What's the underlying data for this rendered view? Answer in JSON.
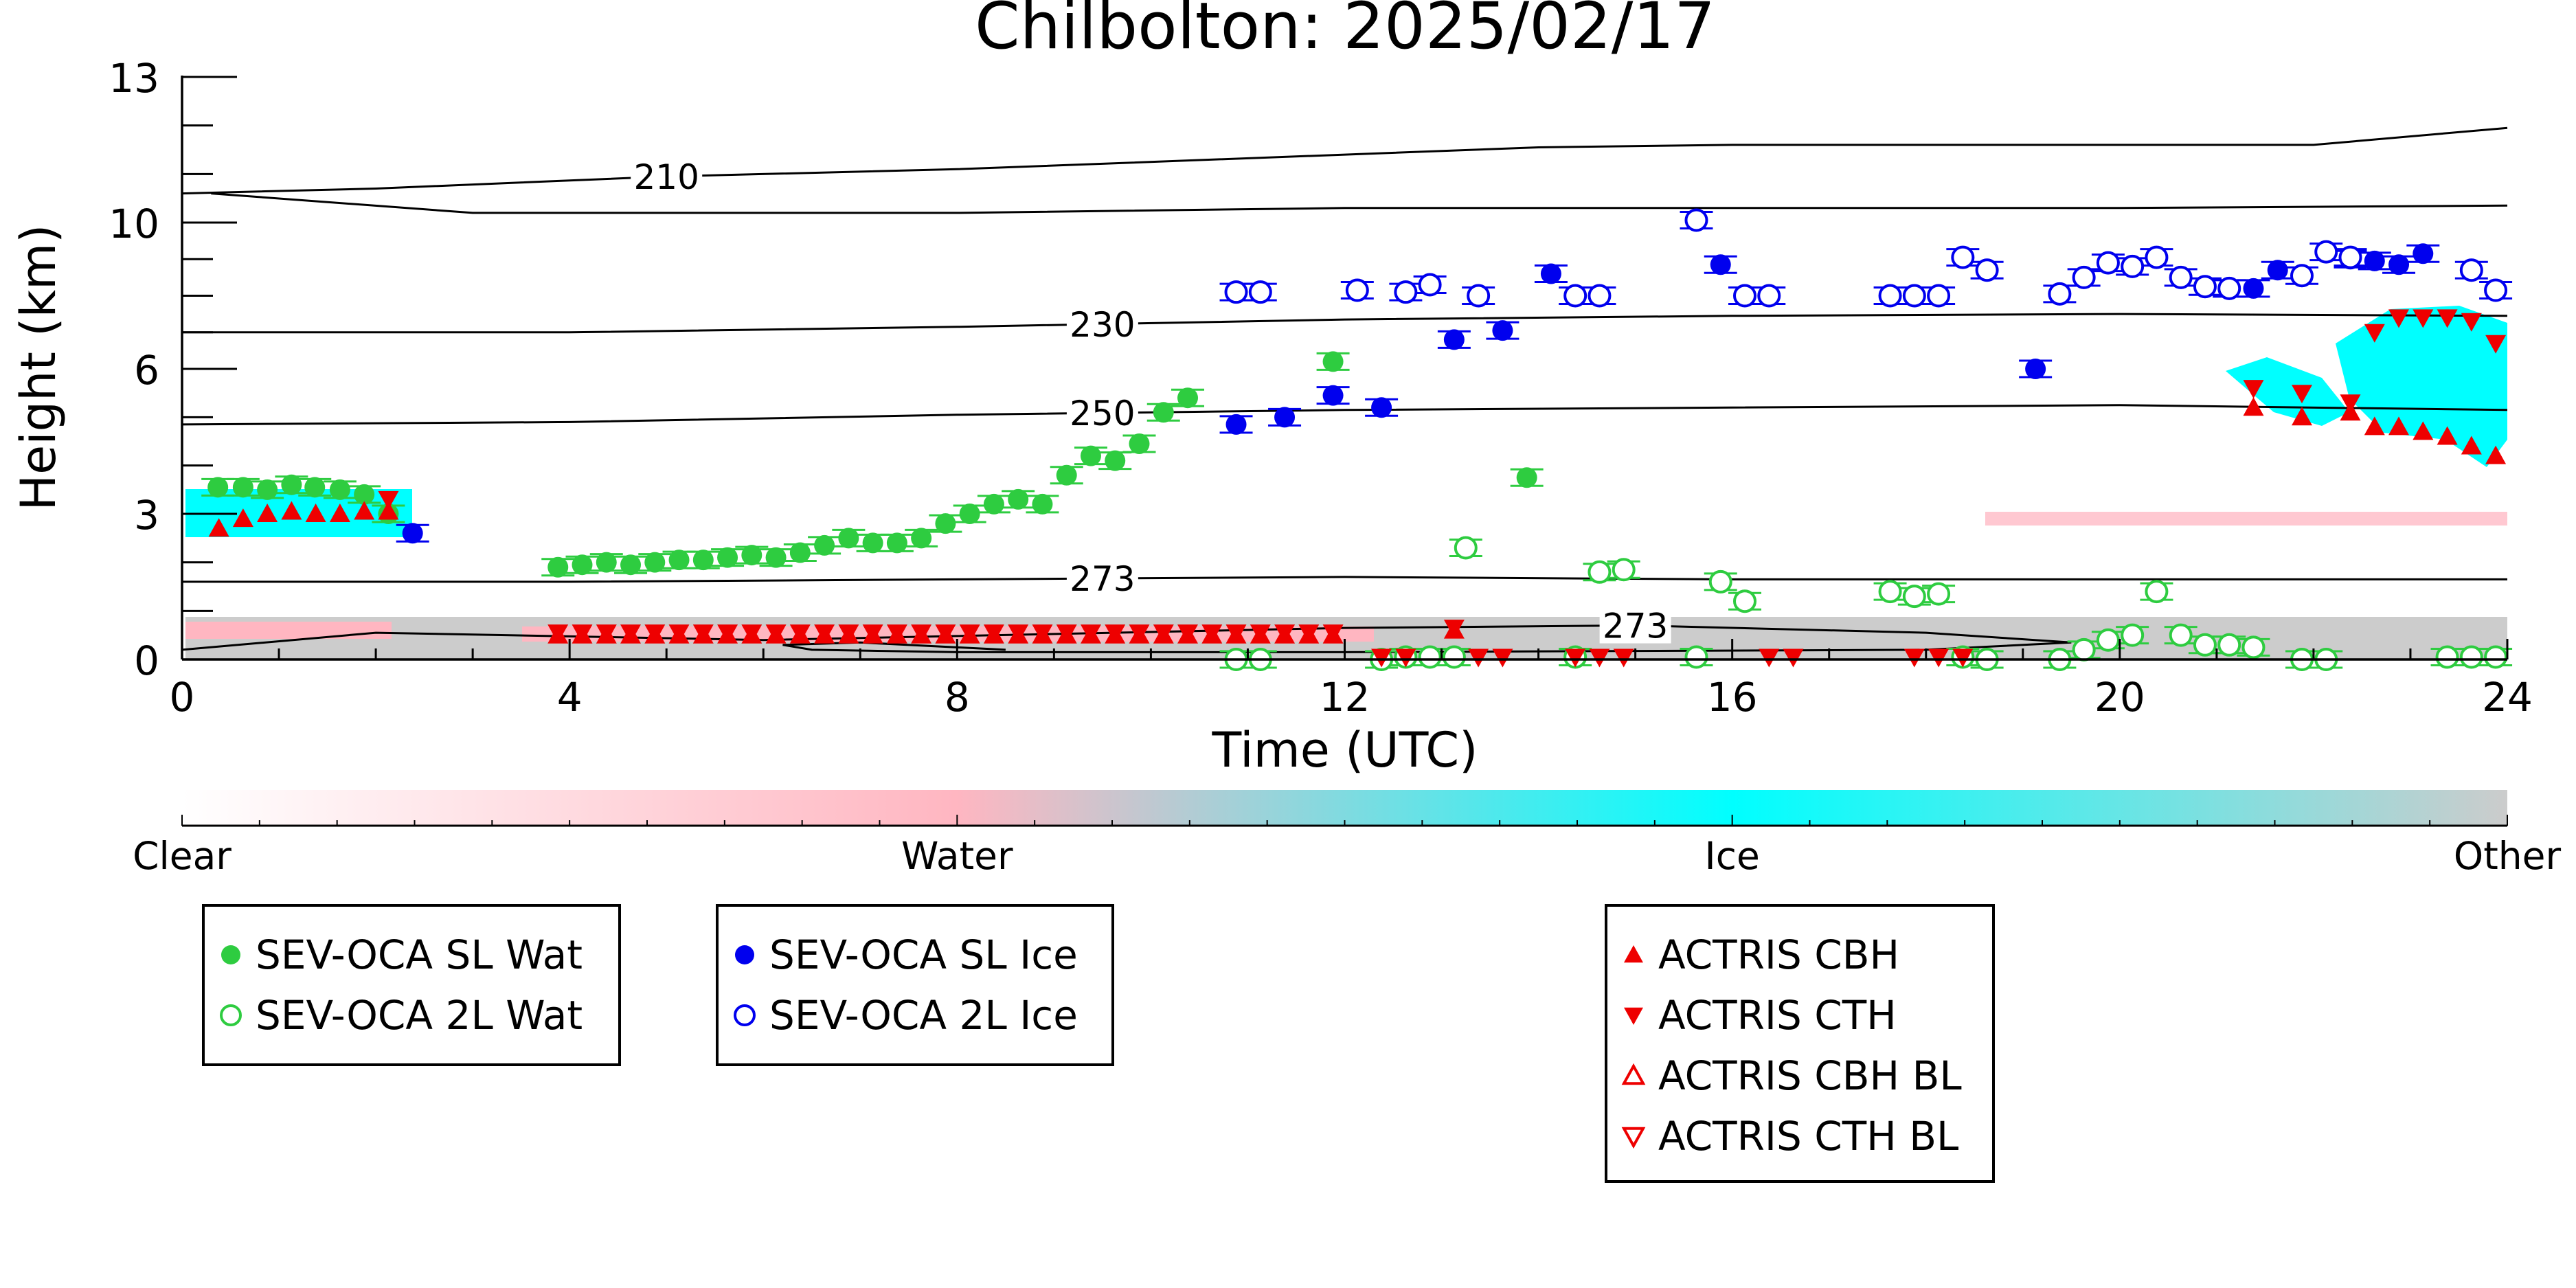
{
  "chart_data": {
    "type": "scatter",
    "title": "Chilbolton: 2025/02/17",
    "xlabel": "Time (UTC)",
    "ylabel": "Height (km)",
    "xlim": [
      0,
      24
    ],
    "ylim": [
      0,
      13
    ],
    "x_ticks": [
      0,
      4,
      8,
      12,
      16,
      20,
      24
    ],
    "y_ticks": [
      0,
      3,
      6,
      10,
      13
    ],
    "y_scale": "nonlinear (piecewise: 0-3, 3-6, 6-10, 10-13 km bands)",
    "colors": {
      "sl_wat": "#2ecc40",
      "tl_wat": "#2ecc40",
      "sl_ice": "#0000ee",
      "tl_ice": "#0000ee",
      "actris": "#ee0000",
      "contour": "#000000",
      "water_fill": "#ffb6c1",
      "ice_fill": "#00ffff",
      "other_fill": "#cccccc"
    },
    "isotherms": [
      {
        "label": "210",
        "label_x": 5.0,
        "points": [
          [
            0,
            10.6
          ],
          [
            2,
            10.7
          ],
          [
            5,
            10.95
          ],
          [
            8,
            11.1
          ],
          [
            12,
            11.4
          ],
          [
            14,
            11.55
          ],
          [
            16,
            11.6
          ],
          [
            20,
            11.6
          ],
          [
            22,
            11.6
          ],
          [
            24,
            11.95
          ]
        ]
      },
      {
        "label": "",
        "label_x": null,
        "points": [
          [
            0.3,
            10.6
          ],
          [
            3,
            10.2
          ],
          [
            8,
            10.2
          ],
          [
            12,
            10.3
          ],
          [
            16,
            10.3
          ],
          [
            20,
            10.3
          ],
          [
            24,
            10.35
          ]
        ]
      },
      {
        "label": "230",
        "label_x": 9.5,
        "points": [
          [
            0,
            7.0
          ],
          [
            4,
            7.0
          ],
          [
            8,
            7.15
          ],
          [
            12,
            7.35
          ],
          [
            16,
            7.45
          ],
          [
            20,
            7.5
          ],
          [
            24,
            7.45
          ]
        ]
      },
      {
        "label": "250",
        "label_x": 9.5,
        "points": [
          [
            0,
            4.85
          ],
          [
            4,
            4.9
          ],
          [
            8,
            5.05
          ],
          [
            12,
            5.15
          ],
          [
            16,
            5.2
          ],
          [
            20,
            5.25
          ],
          [
            24,
            5.15
          ]
        ]
      },
      {
        "label": "273",
        "label_x": 9.5,
        "points": [
          [
            0,
            1.6
          ],
          [
            4,
            1.6
          ],
          [
            8,
            1.65
          ],
          [
            12,
            1.7
          ],
          [
            16,
            1.65
          ],
          [
            20,
            1.65
          ],
          [
            24,
            1.65
          ]
        ]
      },
      {
        "label": "273",
        "label_x": 15.0,
        "points": [
          [
            0,
            0.2
          ],
          [
            2,
            0.55
          ],
          [
            6,
            0.4
          ],
          [
            12,
            0.65
          ],
          [
            15,
            0.7
          ],
          [
            18,
            0.55
          ],
          [
            19.5,
            0.35
          ],
          [
            18,
            0.2
          ],
          [
            12,
            0.15
          ],
          [
            8,
            0.15
          ],
          [
            6.5,
            0.2
          ],
          [
            6.2,
            0.3
          ],
          [
            7,
            0.35
          ],
          [
            8.5,
            0.2
          ]
        ]
      }
    ],
    "series": [
      {
        "name": "SEV-OCA SL Wat",
        "marker": "filled-circle",
        "color": "#2ecc40",
        "x": [
          0.37,
          0.63,
          0.88,
          1.13,
          1.37,
          1.63,
          1.88,
          2.13,
          3.88,
          4.13,
          4.38,
          4.63,
          4.88,
          5.13,
          5.38,
          5.63,
          5.88,
          6.13,
          6.38,
          6.63,
          6.88,
          7.13,
          7.38,
          7.63,
          7.88,
          8.13,
          8.38,
          8.63,
          8.88,
          9.13,
          9.38,
          9.63,
          9.88,
          10.13,
          10.38,
          11.88,
          13.88
        ],
        "y": [
          3.55,
          3.55,
          3.5,
          3.6,
          3.55,
          3.5,
          3.4,
          3.0,
          1.9,
          1.95,
          2.0,
          1.95,
          2.0,
          2.05,
          2.05,
          2.1,
          2.15,
          2.1,
          2.2,
          2.35,
          2.5,
          2.4,
          2.4,
          2.5,
          2.8,
          3.0,
          3.2,
          3.3,
          3.2,
          3.8,
          4.2,
          4.1,
          4.45,
          5.1,
          5.4,
          6.2,
          3.75
        ]
      },
      {
        "name": "SEV-OCA 2L Wat",
        "marker": "open-circle",
        "color": "#2ecc40",
        "x": [
          13.25,
          14.63,
          14.88,
          15.88,
          16.13,
          17.63,
          17.88,
          18.13,
          20.38,
          10.88,
          11.13,
          12.38,
          12.63,
          12.88,
          13.13,
          14.38,
          15.63,
          18.38,
          18.63,
          19.38,
          19.63,
          19.88,
          20.13,
          20.63,
          20.88,
          21.13,
          21.38,
          21.88,
          22.13,
          23.38,
          23.63,
          23.88
        ],
        "y": [
          2.3,
          1.8,
          1.85,
          1.6,
          1.2,
          1.4,
          1.3,
          1.35,
          1.4,
          0.0,
          0.0,
          0.0,
          0.05,
          0.05,
          0.05,
          0.05,
          0.05,
          0.05,
          0.0,
          0.0,
          0.2,
          0.4,
          0.5,
          0.5,
          0.3,
          0.3,
          0.25,
          0.0,
          0.0,
          0.05,
          0.05,
          0.05
        ]
      },
      {
        "name": "SEV-OCA SL Ice",
        "marker": "filled-circle",
        "color": "#0000ee",
        "x": [
          2.38,
          10.88,
          11.38,
          11.88,
          12.38,
          13.13,
          13.63,
          14.13,
          15.88,
          19.13,
          21.38,
          21.63,
          22.38,
          22.63,
          22.88,
          23.13
        ],
        "y": [
          2.6,
          4.85,
          5.0,
          5.45,
          5.2,
          6.8,
          7.05,
          8.6,
          8.85,
          6.0,
          8.2,
          8.7,
          9.0,
          8.95,
          8.85,
          9.15
        ]
      },
      {
        "name": "SEV-OCA 2L Ice",
        "marker": "open-circle",
        "color": "#0000ee",
        "x": [
          10.88,
          11.13,
          12.13,
          12.63,
          12.88,
          13.38,
          14.38,
          14.63,
          15.63,
          16.13,
          16.38,
          17.63,
          17.88,
          18.13,
          18.38,
          18.63,
          19.38,
          19.63,
          19.88,
          20.13,
          20.38,
          20.63,
          20.88,
          21.13,
          21.88,
          22.13,
          22.38,
          23.63,
          23.88
        ],
        "y": [
          8.1,
          8.1,
          8.15,
          8.1,
          8.3,
          8.0,
          8.0,
          8.0,
          10.05,
          8.0,
          8.0,
          8.0,
          8.0,
          8.0,
          9.05,
          8.7,
          8.05,
          8.5,
          8.9,
          8.8,
          9.05,
          8.5,
          8.25,
          8.2,
          8.55,
          9.2,
          9.05,
          8.7,
          8.15
        ]
      },
      {
        "name": "ACTRIS CBH",
        "marker": "filled-triangle-up",
        "color": "#ee0000",
        "x": [
          0.38,
          0.63,
          0.88,
          1.13,
          1.38,
          1.63,
          1.88,
          2.13,
          3.88,
          4.13,
          4.38,
          4.63,
          4.88,
          5.13,
          5.38,
          5.63,
          5.88,
          6.13,
          6.38,
          6.63,
          6.88,
          7.13,
          7.38,
          7.63,
          7.88,
          8.13,
          8.38,
          8.63,
          8.88,
          9.13,
          9.38,
          9.63,
          9.88,
          10.13,
          10.38,
          10.63,
          10.88,
          11.13,
          11.38,
          11.63,
          11.88,
          13.13,
          21.38,
          21.88,
          22.38,
          22.63,
          22.88,
          23.13,
          23.38,
          23.63,
          23.88
        ],
        "y": [
          2.7,
          2.9,
          3.0,
          3.05,
          3.0,
          3.0,
          3.05,
          3.05,
          0.5,
          0.5,
          0.5,
          0.5,
          0.5,
          0.5,
          0.5,
          0.5,
          0.5,
          0.5,
          0.5,
          0.5,
          0.5,
          0.5,
          0.5,
          0.5,
          0.5,
          0.5,
          0.5,
          0.5,
          0.5,
          0.5,
          0.5,
          0.5,
          0.5,
          0.5,
          0.5,
          0.5,
          0.5,
          0.5,
          0.5,
          0.5,
          0.5,
          0.6,
          5.2,
          5.0,
          5.1,
          4.8,
          4.8,
          4.7,
          4.6,
          4.4,
          4.2
        ]
      },
      {
        "name": "ACTRIS CTH",
        "marker": "filled-triangle-down",
        "color": "#ee0000",
        "x": [
          2.13,
          3.88,
          4.13,
          4.38,
          4.63,
          4.88,
          5.13,
          5.38,
          5.63,
          5.88,
          6.13,
          6.38,
          6.63,
          6.88,
          7.13,
          7.38,
          7.63,
          7.88,
          8.13,
          8.38,
          8.63,
          8.88,
          9.13,
          9.38,
          9.63,
          9.88,
          10.13,
          10.38,
          10.63,
          10.88,
          11.13,
          11.38,
          11.63,
          11.88,
          12.38,
          12.63,
          13.13,
          13.38,
          13.63,
          14.38,
          14.63,
          14.88,
          16.38,
          16.63,
          17.88,
          18.13,
          18.38,
          21.38,
          21.88,
          22.38,
          22.63,
          22.88,
          23.13,
          23.38,
          23.63,
          23.88
        ],
        "y": [
          3.3,
          0.55,
          0.55,
          0.55,
          0.55,
          0.55,
          0.55,
          0.55,
          0.55,
          0.55,
          0.55,
          0.55,
          0.55,
          0.55,
          0.55,
          0.55,
          0.55,
          0.55,
          0.55,
          0.55,
          0.55,
          0.55,
          0.55,
          0.55,
          0.55,
          0.55,
          0.55,
          0.55,
          0.55,
          0.55,
          0.55,
          0.55,
          0.55,
          0.55,
          0.05,
          0.05,
          0.65,
          0.05,
          0.05,
          0.05,
          0.05,
          0.05,
          0.05,
          0.05,
          0.05,
          0.05,
          0.05,
          5.6,
          5.5,
          5.3,
          7.0,
          7.4,
          7.4,
          7.4,
          7.3,
          6.7
        ]
      },
      {
        "name": "ACTRIS CBH BL",
        "marker": "open-triangle-up",
        "color": "#ee0000",
        "x": [],
        "y": []
      },
      {
        "name": "ACTRIS CTH BL",
        "marker": "open-triangle-down",
        "color": "#ee0000",
        "x": [],
        "y": []
      }
    ],
    "colorbar": {
      "labels": [
        "Clear",
        "Water",
        "Ice",
        "Other"
      ],
      "colors": [
        "#ffffff",
        "#ffb6c1",
        "#00ffff",
        "#cccccc"
      ]
    },
    "legends": [
      {
        "entries": [
          "SEV-OCA SL Wat",
          "SEV-OCA 2L Wat"
        ]
      },
      {
        "entries": [
          "SEV-OCA SL Ice",
          "SEV-OCA 2L Ice"
        ]
      },
      {
        "entries": [
          "ACTRIS CBH",
          "ACTRIS CTH",
          "ACTRIS CBH BL",
          "ACTRIS CTH BL"
        ]
      }
    ]
  }
}
